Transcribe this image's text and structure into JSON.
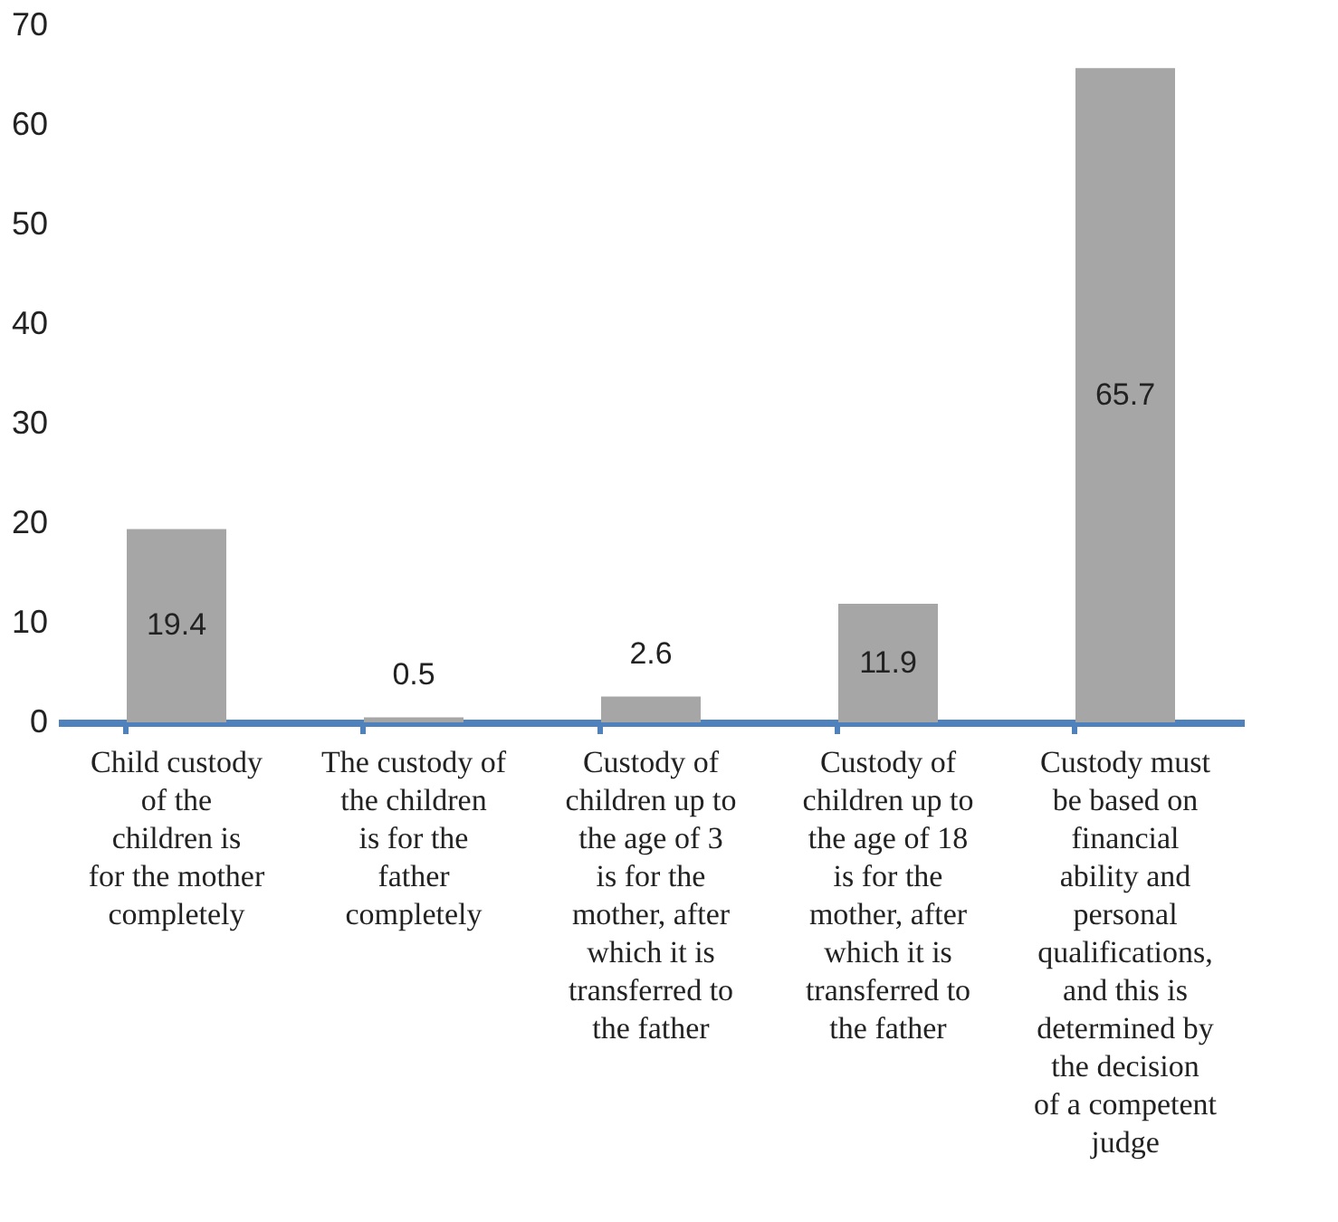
{
  "chart_data": {
    "type": "bar",
    "categories": [
      "Child custody of the children is for the mother completely",
      "The custody of the children is for the father completely",
      "Custody of children up to the age of 3 is for the mother, after which it is transferred to the father",
      "Custody of children up to the age of 18 is for the mother, after which it is transferred to the father",
      "Custody must be based on financial ability and personal qualifications, and this is determined by the decision of a competent judge"
    ],
    "values": [
      19.4,
      0.5,
      2.6,
      11.9,
      65.7
    ],
    "color": "#a6a6a6",
    "ylim": [
      0,
      70
    ],
    "yticks": [
      0,
      10,
      20,
      30,
      40,
      50,
      60,
      70
    ],
    "data_labels": true,
    "grid": false
  }
}
